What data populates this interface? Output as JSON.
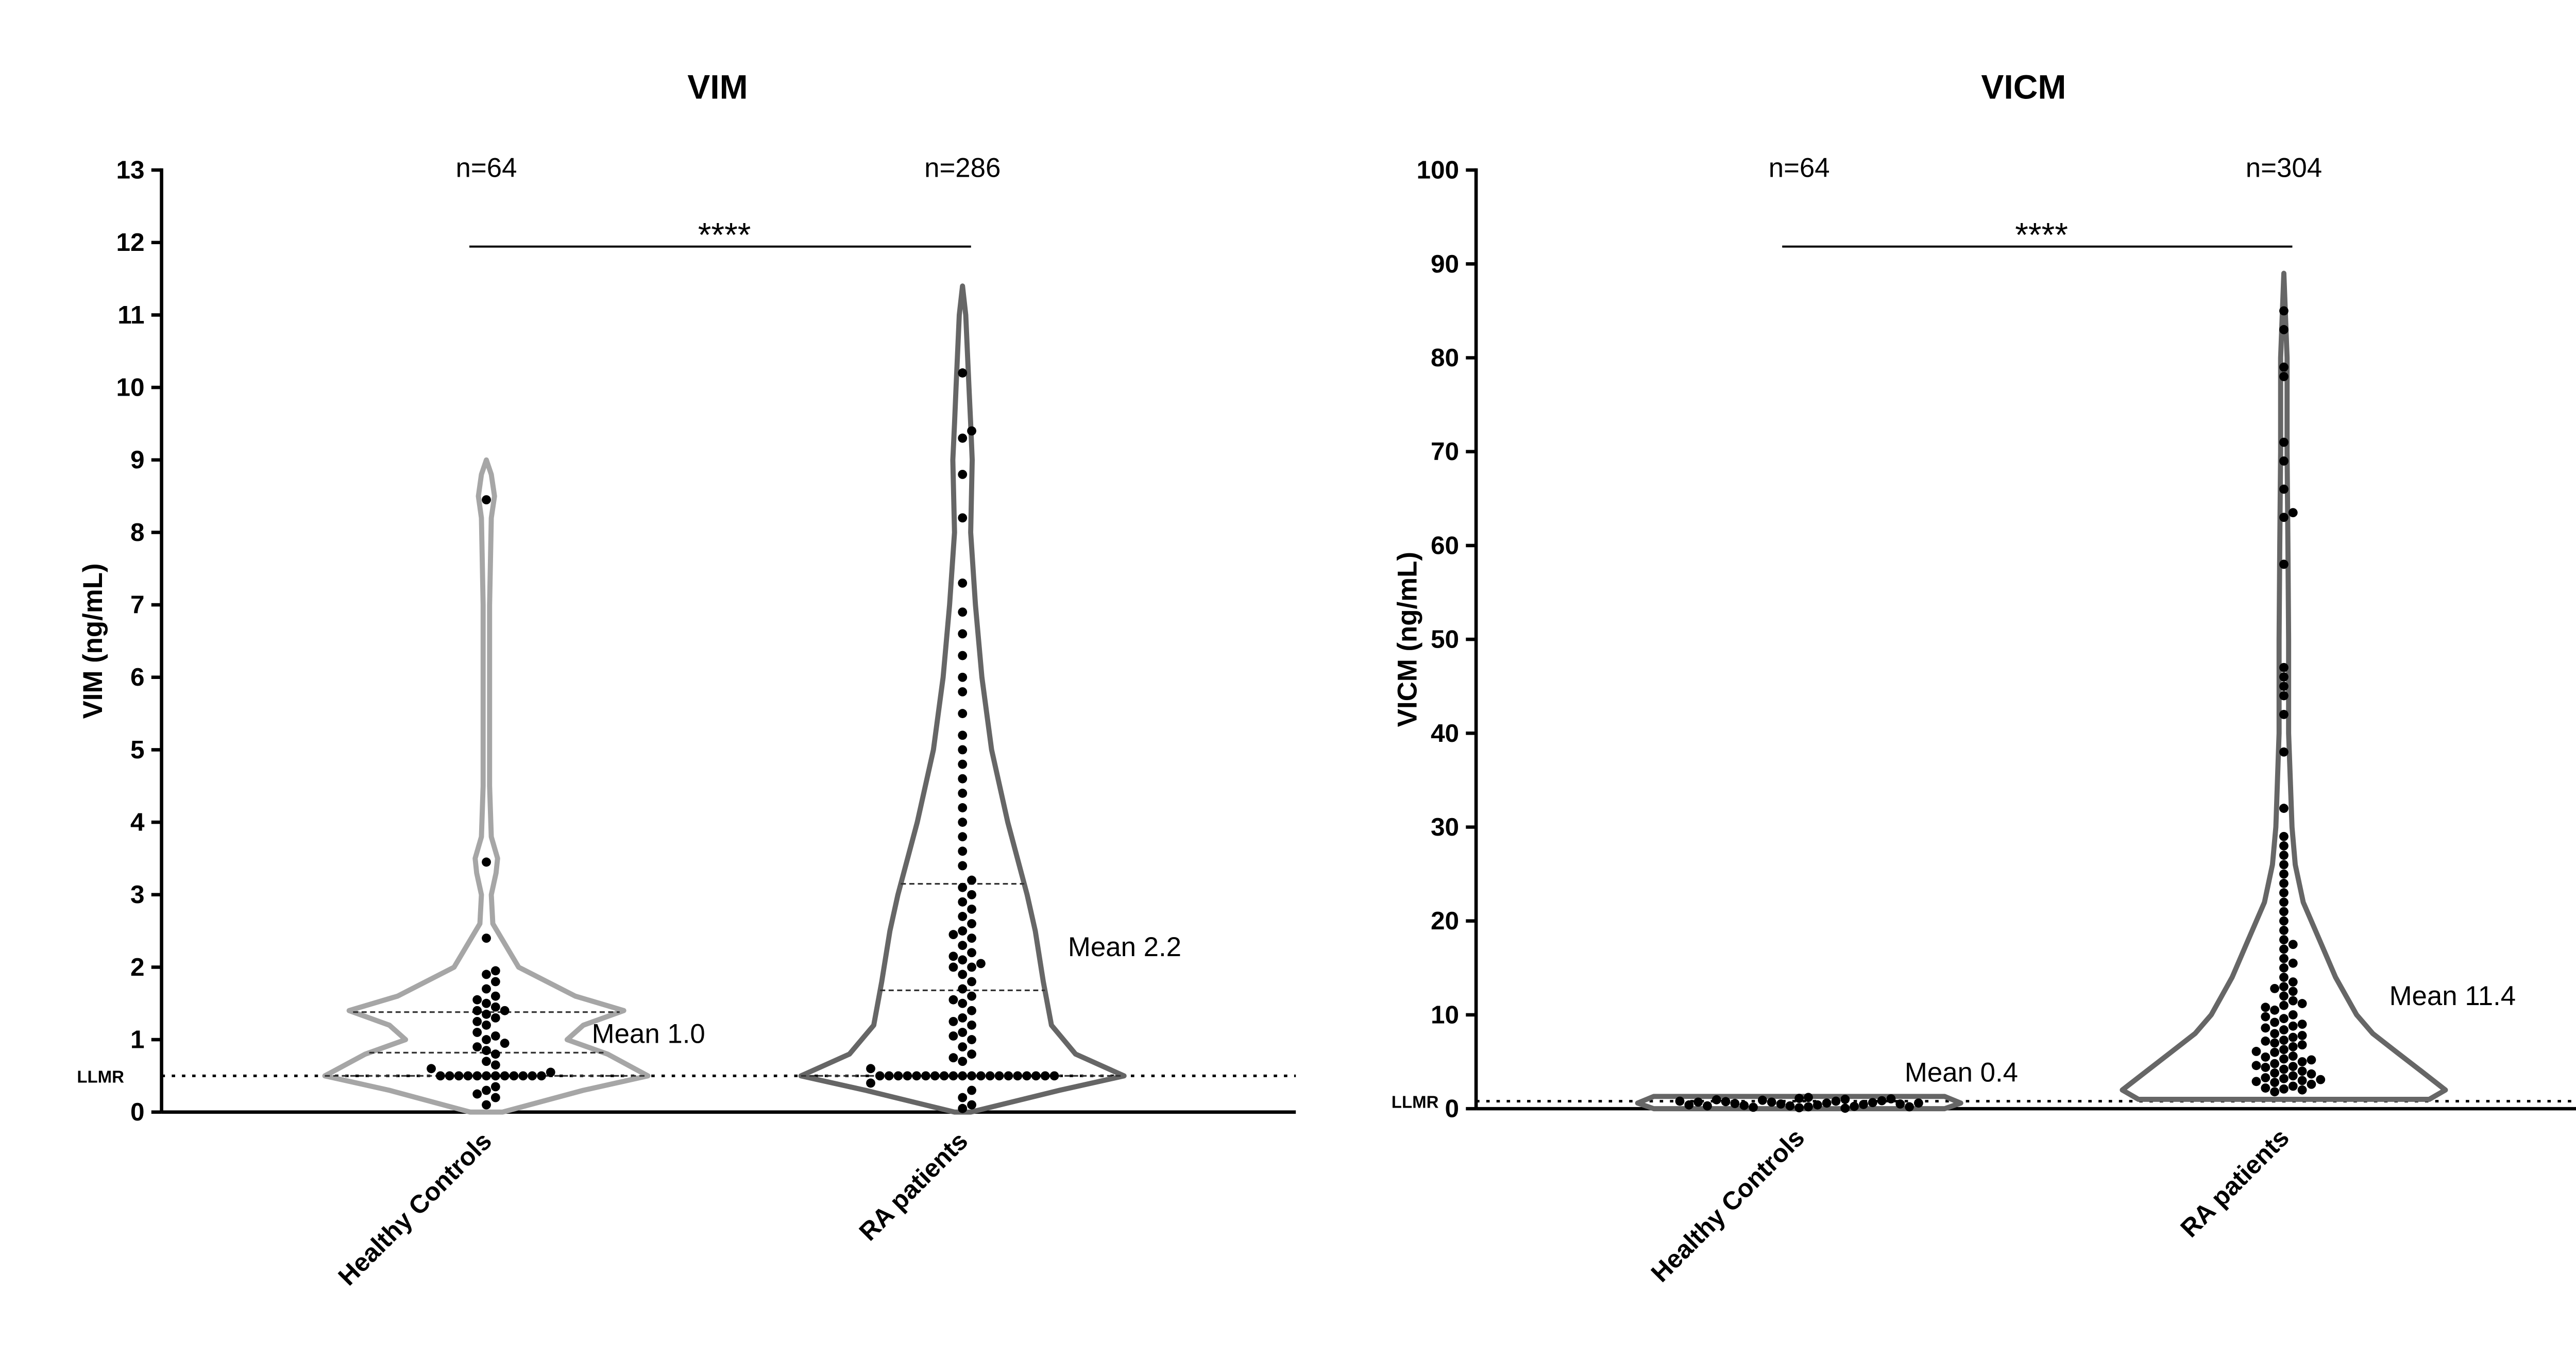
{
  "chart_data": [
    {
      "type": "violin",
      "title": "VIM",
      "y_label": "VIM (ng/mL)",
      "ylim": [
        0,
        13
      ],
      "yticks": [
        0,
        1,
        2,
        3,
        4,
        5,
        6,
        7,
        8,
        9,
        10,
        11,
        12,
        13
      ],
      "categories": [
        "Healthy Controls",
        "RA patients"
      ],
      "significance": "****",
      "reference_line": {
        "label": "LLMR",
        "value": 0.5
      },
      "groups": [
        {
          "n_label": "n=64",
          "color": "#a6a6a6",
          "mean": 1.0,
          "mean_label": "Mean 1.0",
          "quartiles": [
            0.5,
            0.82,
            1.38
          ],
          "density": {
            "values": [
              0,
              0.3,
              0.5,
              0.8,
              1.0,
              1.2,
              1.4,
              1.6,
              2.0,
              2.3,
              2.6,
              3.0,
              3.3,
              3.5,
              3.8,
              4.5,
              7,
              8.2,
              8.5,
              8.8,
              9
            ],
            "widths": [
              0.1,
              0.6,
              1.0,
              0.75,
              0.5,
              0.6,
              0.85,
              0.55,
              0.2,
              0.12,
              0.04,
              0.03,
              0.06,
              0.07,
              0.03,
              0.02,
              0.02,
              0.03,
              0.05,
              0.03,
              0
            ]
          },
          "values": [
            0.5,
            0.5,
            0.5,
            0.5,
            0.5,
            0.5,
            0.5,
            0.5,
            0.5,
            0.5,
            0.5,
            0.5,
            0.1,
            0.2,
            0.3,
            0.35,
            0.6,
            0.7,
            0.8,
            0.85,
            0.9,
            1.0,
            1.05,
            1.1,
            1.2,
            1.3,
            1.35,
            1.4,
            1.4,
            1.45,
            1.5,
            1.6,
            1.7,
            1.8,
            1.9,
            1.95,
            2.4,
            3.45,
            8.45,
            0.25,
            0.55,
            0.65,
            0.95,
            1.25,
            1.55
          ]
        },
        {
          "n_label": "n=286",
          "color": "#666666",
          "mean": 2.2,
          "mean_label": "Mean 2.2",
          "quartiles": [
            0.5,
            1.68,
            3.15
          ],
          "density": {
            "values": [
              0,
              0.3,
              0.5,
              0.8,
              1.2,
              1.8,
              2.5,
              3,
              4,
              5,
              6,
              7,
              8,
              9,
              9.5,
              10,
              11,
              11.4
            ],
            "widths": [
              0.05,
              0.6,
              1.0,
              0.7,
              0.55,
              0.5,
              0.45,
              0.4,
              0.28,
              0.18,
              0.12,
              0.08,
              0.05,
              0.06,
              0.05,
              0.04,
              0.02,
              0
            ]
          },
          "values": [
            0.5,
            0.5,
            0.5,
            0.5,
            0.5,
            0.5,
            0.5,
            0.5,
            0.5,
            0.5,
            0.5,
            0.5,
            0.5,
            0.5,
            0.5,
            0.5,
            0.5,
            0.5,
            0.5,
            0.5,
            0.05,
            0.1,
            0.2,
            0.3,
            0.4,
            0.6,
            0.7,
            0.8,
            0.9,
            1.0,
            1.1,
            1.2,
            1.3,
            1.4,
            1.5,
            1.6,
            1.7,
            1.8,
            1.9,
            2.0,
            2.0,
            2.1,
            2.2,
            2.3,
            2.4,
            2.5,
            2.6,
            2.7,
            2.8,
            2.9,
            3.0,
            3.1,
            3.2,
            3.4,
            3.6,
            3.8,
            4.0,
            4.2,
            4.4,
            4.6,
            4.8,
            5.0,
            5.2,
            5.5,
            5.8,
            6.0,
            6.3,
            6.6,
            6.9,
            7.3,
            8.2,
            8.8,
            9.3,
            9.4,
            10.2,
            1.05,
            1.55,
            2.05,
            2.15,
            2.45,
            0.75,
            1.25
          ]
        }
      ]
    },
    {
      "type": "violin",
      "title": "VICM",
      "y_label": "VICM (ng/mL)",
      "ylim": [
        0,
        100
      ],
      "yticks": [
        0,
        10,
        20,
        30,
        40,
        50,
        60,
        70,
        80,
        90,
        100
      ],
      "categories": [
        "Healthy Controls",
        "RA patients"
      ],
      "significance": "****",
      "reference_line": {
        "label": "LLMR",
        "value": 0.8
      },
      "groups": [
        {
          "n_label": "n=64",
          "color": "#666666",
          "mean": 0.4,
          "mean_label": "Mean 0.4",
          "density": {
            "values": [
              0,
              0.6,
              1.3
            ],
            "widths": [
              0.9,
              1.0,
              0.9
            ]
          },
          "values": [
            0.1,
            0.2,
            0.3,
            0.4,
            0.5,
            0.6,
            0.7,
            0.8,
            0.9,
            1.0,
            1.1,
            1.2,
            0.15,
            0.25,
            0.35,
            0.45,
            0.55,
            0.65,
            0.75,
            0.85,
            0.95,
            1.05,
            0.05,
            0.3,
            0.5,
            0.7,
            0.2,
            0.4,
            0.6,
            0.8
          ]
        },
        {
          "n_label": "n=304",
          "color": "#666666",
          "mean": 11.4,
          "mean_label": "Mean 11.4",
          "density": {
            "values": [
              1,
              2,
              4,
              6,
              8,
              10,
              14,
              18,
              22,
              26,
              30,
              40,
              50,
              60,
              70,
              80,
              89
            ],
            "widths": [
              0.9,
              1.0,
              0.85,
              0.7,
              0.55,
              0.45,
              0.32,
              0.22,
              0.12,
              0.07,
              0.05,
              0.03,
              0.03,
              0.025,
              0.02,
              0.02,
              0
            ]
          },
          "values": [
            2.1,
            2.4,
            2.8,
            3.0,
            3.2,
            3.5,
            3.8,
            4.0,
            4.2,
            4.5,
            4.8,
            5.0,
            5.3,
            5.6,
            6.0,
            6.3,
            6.6,
            7.0,
            7.3,
            7.6,
            8.0,
            8.4,
            8.8,
            9.2,
            9.6,
            10,
            10.5,
            11,
            11.5,
            12,
            12.5,
            13,
            13.5,
            14,
            15,
            16,
            17,
            18,
            19,
            20,
            21,
            22,
            23,
            24,
            25,
            26,
            27,
            28,
            29,
            32,
            38,
            42,
            44,
            45,
            46,
            47,
            58,
            63,
            63.5,
            66,
            69,
            71,
            78,
            79,
            83,
            85,
            2.2,
            2.6,
            3.3,
            3.7,
            4.4,
            5.5,
            6.8,
            7.8,
            9,
            11.2,
            12.8,
            15.5,
            17.5,
            1.8,
            2.0,
            2.9,
            3.1,
            4.6,
            5.2,
            6.1,
            7.2,
            8.6,
            9.8,
            10.8
          ]
        }
      ]
    }
  ]
}
